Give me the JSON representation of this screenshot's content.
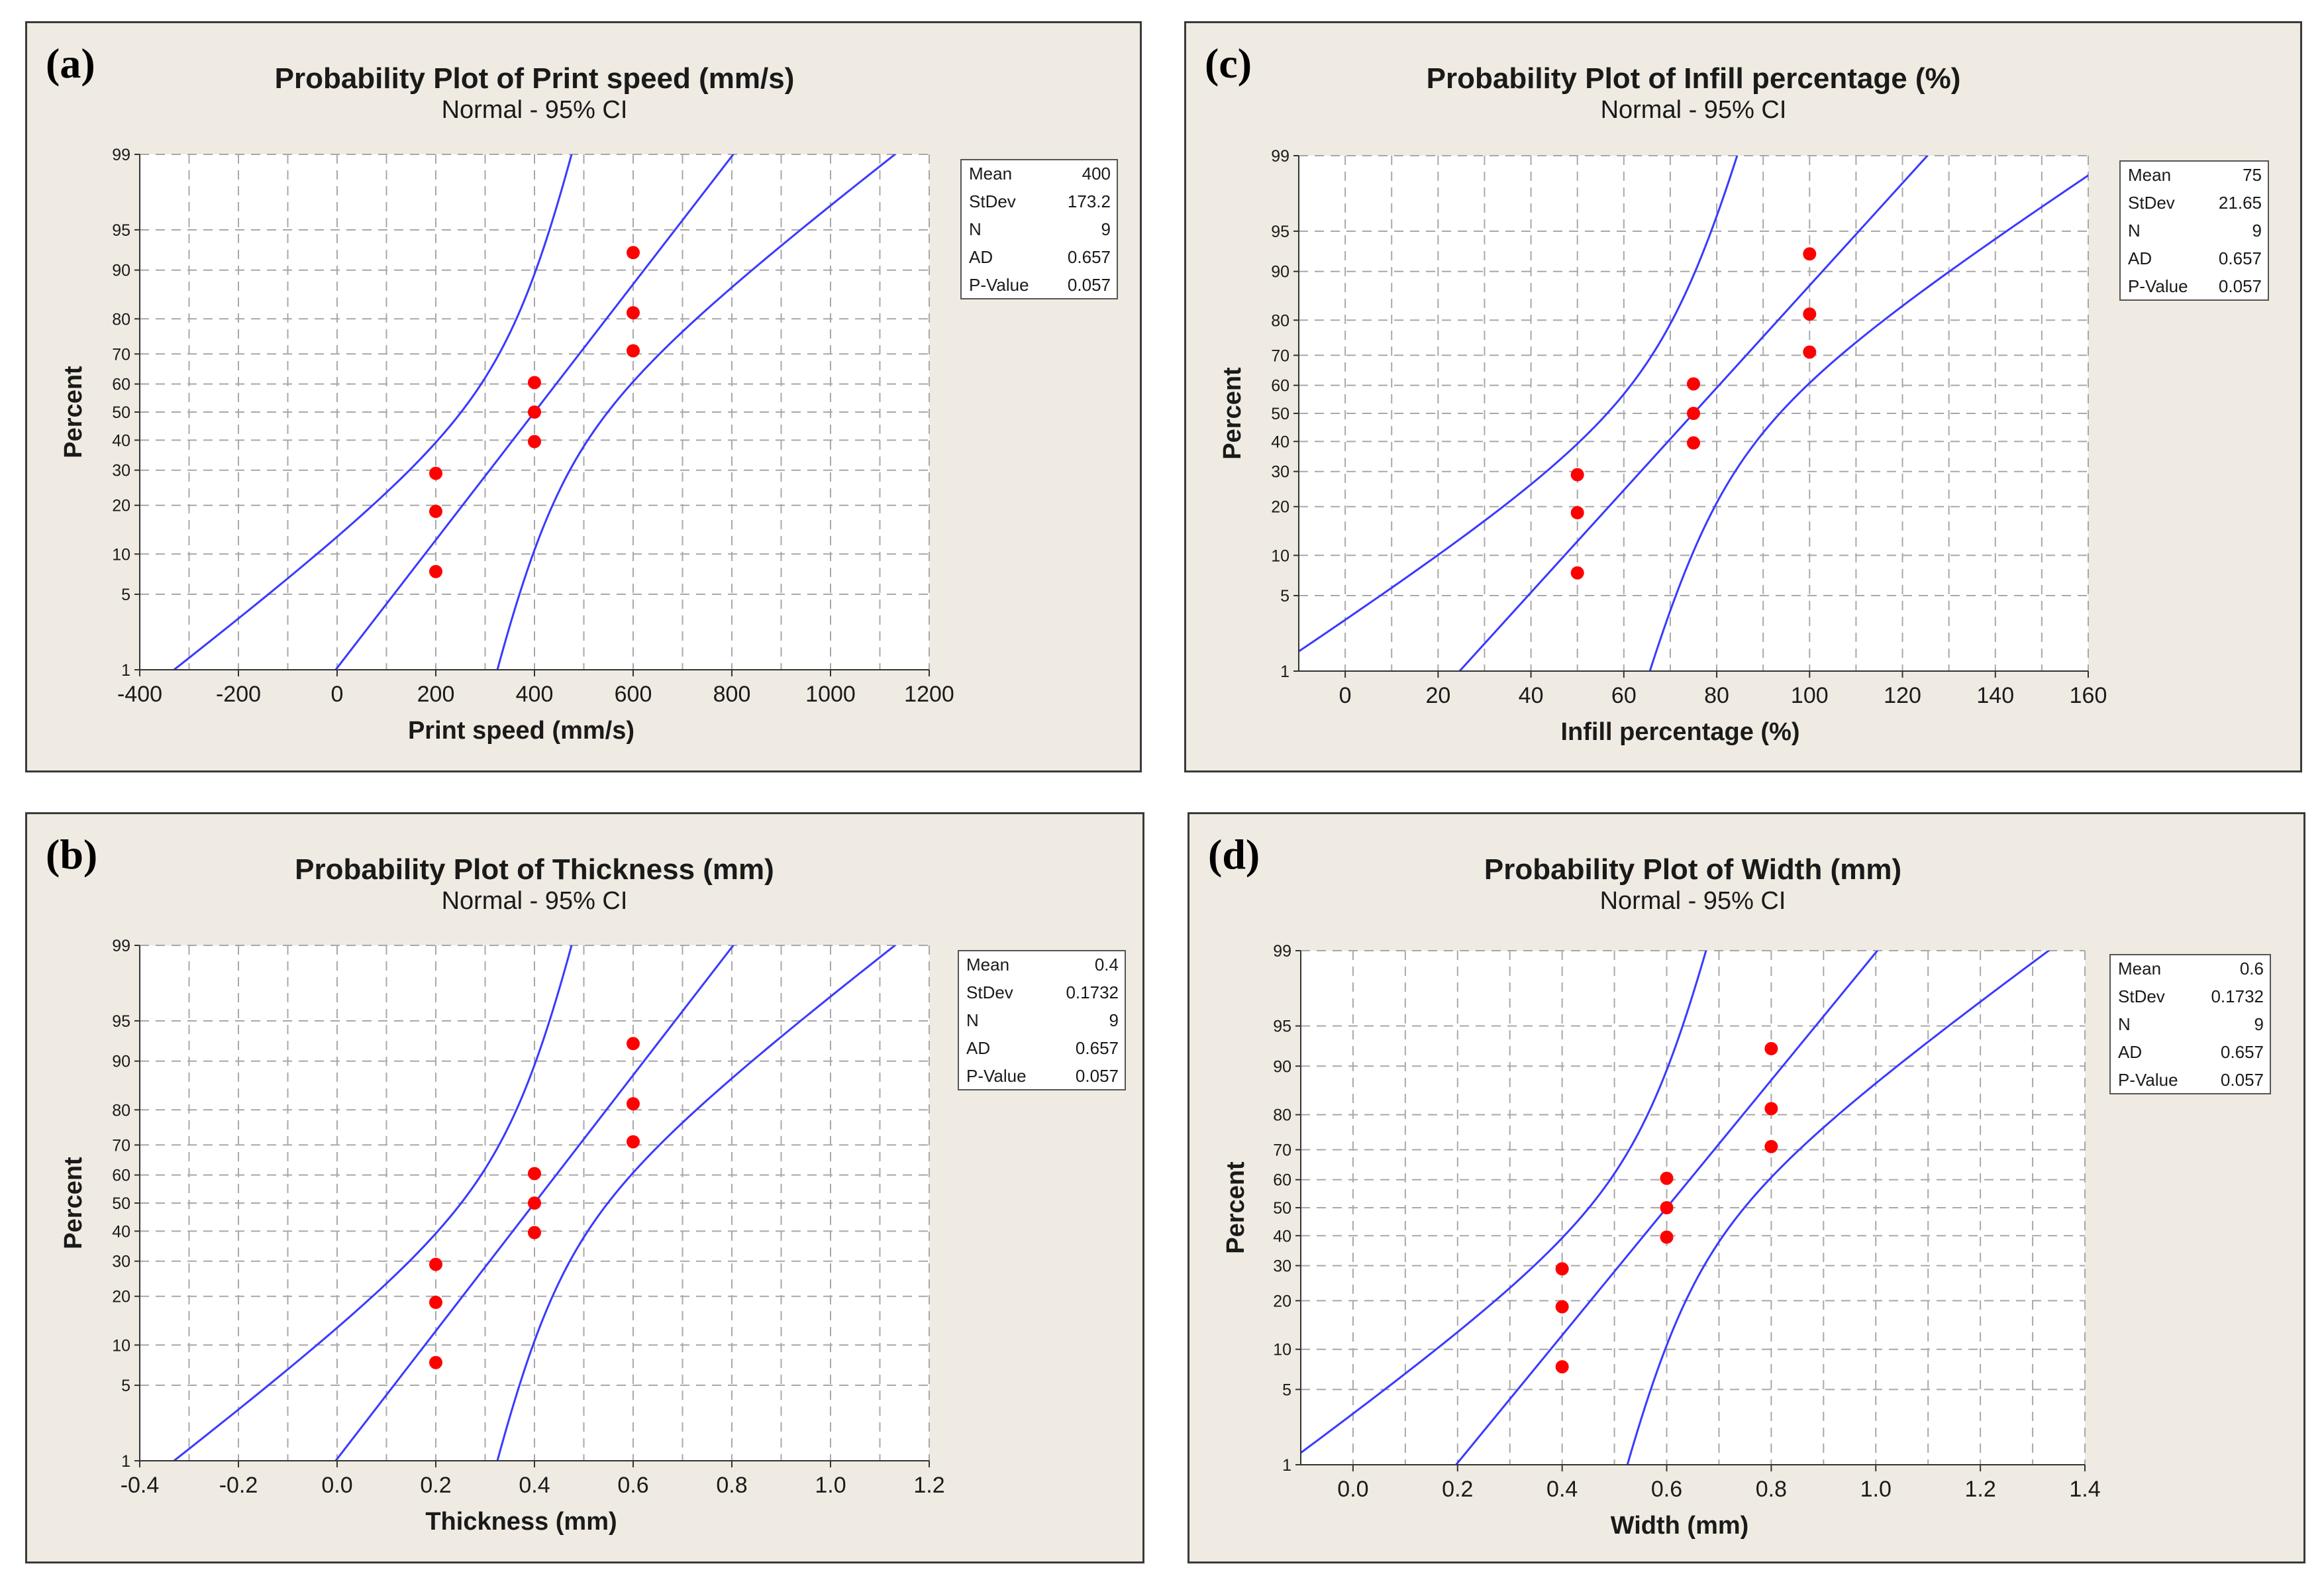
{
  "chart_data": [
    {
      "id": "a",
      "type": "scatter",
      "panel_label": "(a)",
      "title": "Probability Plot of Print speed (mm/s)",
      "subtitle": "Normal - 95% CI",
      "xlabel": "Print speed (mm/s)",
      "ylabel": "Percent",
      "xlim": [
        -400,
        1200
      ],
      "xticks": [
        -400,
        -200,
        0,
        200,
        400,
        600,
        800,
        1000,
        1200
      ],
      "xtick_labels": [
        "-400",
        "-200",
        "0",
        "200",
        "400",
        "600",
        "800",
        "1000",
        "1200"
      ],
      "yticks": [
        1,
        5,
        10,
        20,
        30,
        40,
        50,
        60,
        70,
        80,
        90,
        95,
        99
      ],
      "yscale": "normal-probability",
      "grid": true,
      "points": [
        [
          200,
          7.5
        ],
        [
          200,
          18.5
        ],
        [
          200,
          29.0
        ],
        [
          400,
          39.5
        ],
        [
          400,
          50.0
        ],
        [
          400,
          60.5
        ],
        [
          600,
          71.0
        ],
        [
          600,
          81.5
        ],
        [
          600,
          92.5
        ]
      ],
      "fit": {
        "mean": 400,
        "sd": 173.2
      },
      "ci_half_width_sd": 1.45,
      "ci_points": [
        [
          -221,
          1
        ],
        [
          0,
          8.3
        ],
        [
          200,
          29.3
        ],
        [
          400,
          62
        ],
        [
          490,
          95.5
        ],
        [
          555,
          99
        ],
        [
          209,
          1
        ],
        [
          330,
          9
        ],
        [
          400,
          20
        ],
        [
          600,
          60
        ],
        [
          800,
          92.5
        ],
        [
          960,
          99
        ]
      ],
      "stats": [
        {
          "label": "Mean",
          "value": "400"
        },
        {
          "label": "StDev",
          "value": "173.2"
        },
        {
          "label": "N",
          "value": "9"
        },
        {
          "label": "AD",
          "value": "0.657"
        },
        {
          "label": "P-Value",
          "value": "0.057"
        }
      ],
      "colors": {
        "points": "#ff0000",
        "lines": "#3a3aff",
        "grid": "#a8a8a8"
      }
    },
    {
      "id": "c",
      "type": "scatter",
      "panel_label": "(c)",
      "title": "Probability Plot of Infill percentage (%)",
      "subtitle": "Normal - 95% CI",
      "xlabel": "Infill percentage (%)",
      "ylabel": "Percent",
      "xlim": [
        -10,
        160
      ],
      "xticks": [
        0,
        20,
        40,
        60,
        80,
        100,
        120,
        140,
        160
      ],
      "xtick_labels": [
        "0",
        "20",
        "40",
        "60",
        "80",
        "100",
        "120",
        "140",
        "160"
      ],
      "yticks": [
        1,
        5,
        10,
        20,
        30,
        40,
        50,
        60,
        70,
        80,
        90,
        95,
        99
      ],
      "yscale": "normal-probability",
      "grid": true,
      "points": [
        [
          50,
          7.5
        ],
        [
          50,
          18.5
        ],
        [
          50,
          29.0
        ],
        [
          75,
          39.5
        ],
        [
          75,
          50.0
        ],
        [
          75,
          60.5
        ],
        [
          100,
          71.0
        ],
        [
          100,
          81.5
        ],
        [
          100,
          92.5
        ]
      ],
      "fit": {
        "mean": 75,
        "sd": 21.65
      },
      "ci_half_width_sd": 1.45,
      "stats": [
        {
          "label": "Mean",
          "value": "75"
        },
        {
          "label": "StDev",
          "value": "21.65"
        },
        {
          "label": "N",
          "value": "9"
        },
        {
          "label": "AD",
          "value": "0.657"
        },
        {
          "label": "P-Value",
          "value": "0.057"
        }
      ],
      "colors": {
        "points": "#ff0000",
        "lines": "#3a3aff",
        "grid": "#a8a8a8"
      }
    },
    {
      "id": "b",
      "type": "scatter",
      "panel_label": "(b)",
      "title": "Probability Plot of Thickness (mm)",
      "subtitle": "Normal - 95% CI",
      "xlabel": "Thickness (mm)",
      "ylabel": "Percent",
      "xlim": [
        -0.4,
        1.2
      ],
      "xticks": [
        -0.4,
        -0.2,
        0.0,
        0.2,
        0.4,
        0.6,
        0.8,
        1.0,
        1.2
      ],
      "xtick_labels": [
        "-0.4",
        "-0.2",
        "0.0",
        "0.2",
        "0.4",
        "0.6",
        "0.8",
        "1.0",
        "1.2"
      ],
      "yticks": [
        1,
        5,
        10,
        20,
        30,
        40,
        50,
        60,
        70,
        80,
        90,
        95,
        99
      ],
      "yscale": "normal-probability",
      "grid": true,
      "points": [
        [
          0.2,
          7.5
        ],
        [
          0.2,
          18.5
        ],
        [
          0.2,
          29.0
        ],
        [
          0.4,
          39.5
        ],
        [
          0.4,
          50.0
        ],
        [
          0.4,
          60.5
        ],
        [
          0.6,
          71.0
        ],
        [
          0.6,
          81.5
        ],
        [
          0.6,
          92.5
        ]
      ],
      "fit": {
        "mean": 0.4,
        "sd": 0.1732
      },
      "ci_half_width_sd": 1.45,
      "stats": [
        {
          "label": "Mean",
          "value": "0.4"
        },
        {
          "label": "StDev",
          "value": "0.1732"
        },
        {
          "label": "N",
          "value": "9"
        },
        {
          "label": "AD",
          "value": "0.657"
        },
        {
          "label": "P-Value",
          "value": "0.057"
        }
      ],
      "colors": {
        "points": "#ff0000",
        "lines": "#3a3aff",
        "grid": "#a8a8a8"
      }
    },
    {
      "id": "d",
      "type": "scatter",
      "panel_label": "(d)",
      "title": "Probability Plot of Width (mm)",
      "subtitle": "Normal - 95% CI",
      "xlabel": "Width (mm)",
      "ylabel": "Percent",
      "xlim": [
        -0.1,
        1.4
      ],
      "xticks": [
        0.0,
        0.2,
        0.4,
        0.6,
        0.8,
        1.0,
        1.2,
        1.4
      ],
      "xtick_labels": [
        "0.0",
        "0.2",
        "0.4",
        "0.6",
        "0.8",
        "1.0",
        "1.2",
        "1.4"
      ],
      "yticks": [
        1,
        5,
        10,
        20,
        30,
        40,
        50,
        60,
        70,
        80,
        90,
        95,
        99
      ],
      "yscale": "normal-probability",
      "grid": true,
      "points": [
        [
          0.4,
          7.5
        ],
        [
          0.4,
          18.5
        ],
        [
          0.4,
          29.0
        ],
        [
          0.6,
          39.5
        ],
        [
          0.6,
          50.0
        ],
        [
          0.6,
          60.5
        ],
        [
          0.8,
          71.0
        ],
        [
          0.8,
          81.5
        ],
        [
          0.8,
          92.5
        ]
      ],
      "fit": {
        "mean": 0.6,
        "sd": 0.1732
      },
      "ci_half_width_sd": 1.45,
      "stats": [
        {
          "label": "Mean",
          "value": "0.6"
        },
        {
          "label": "StDev",
          "value": "0.1732"
        },
        {
          "label": "N",
          "value": "9"
        },
        {
          "label": "AD",
          "value": "0.657"
        },
        {
          "label": "P-Value",
          "value": "0.057"
        }
      ],
      "colors": {
        "points": "#ff0000",
        "lines": "#3a3aff",
        "grid": "#a8a8a8"
      }
    }
  ]
}
